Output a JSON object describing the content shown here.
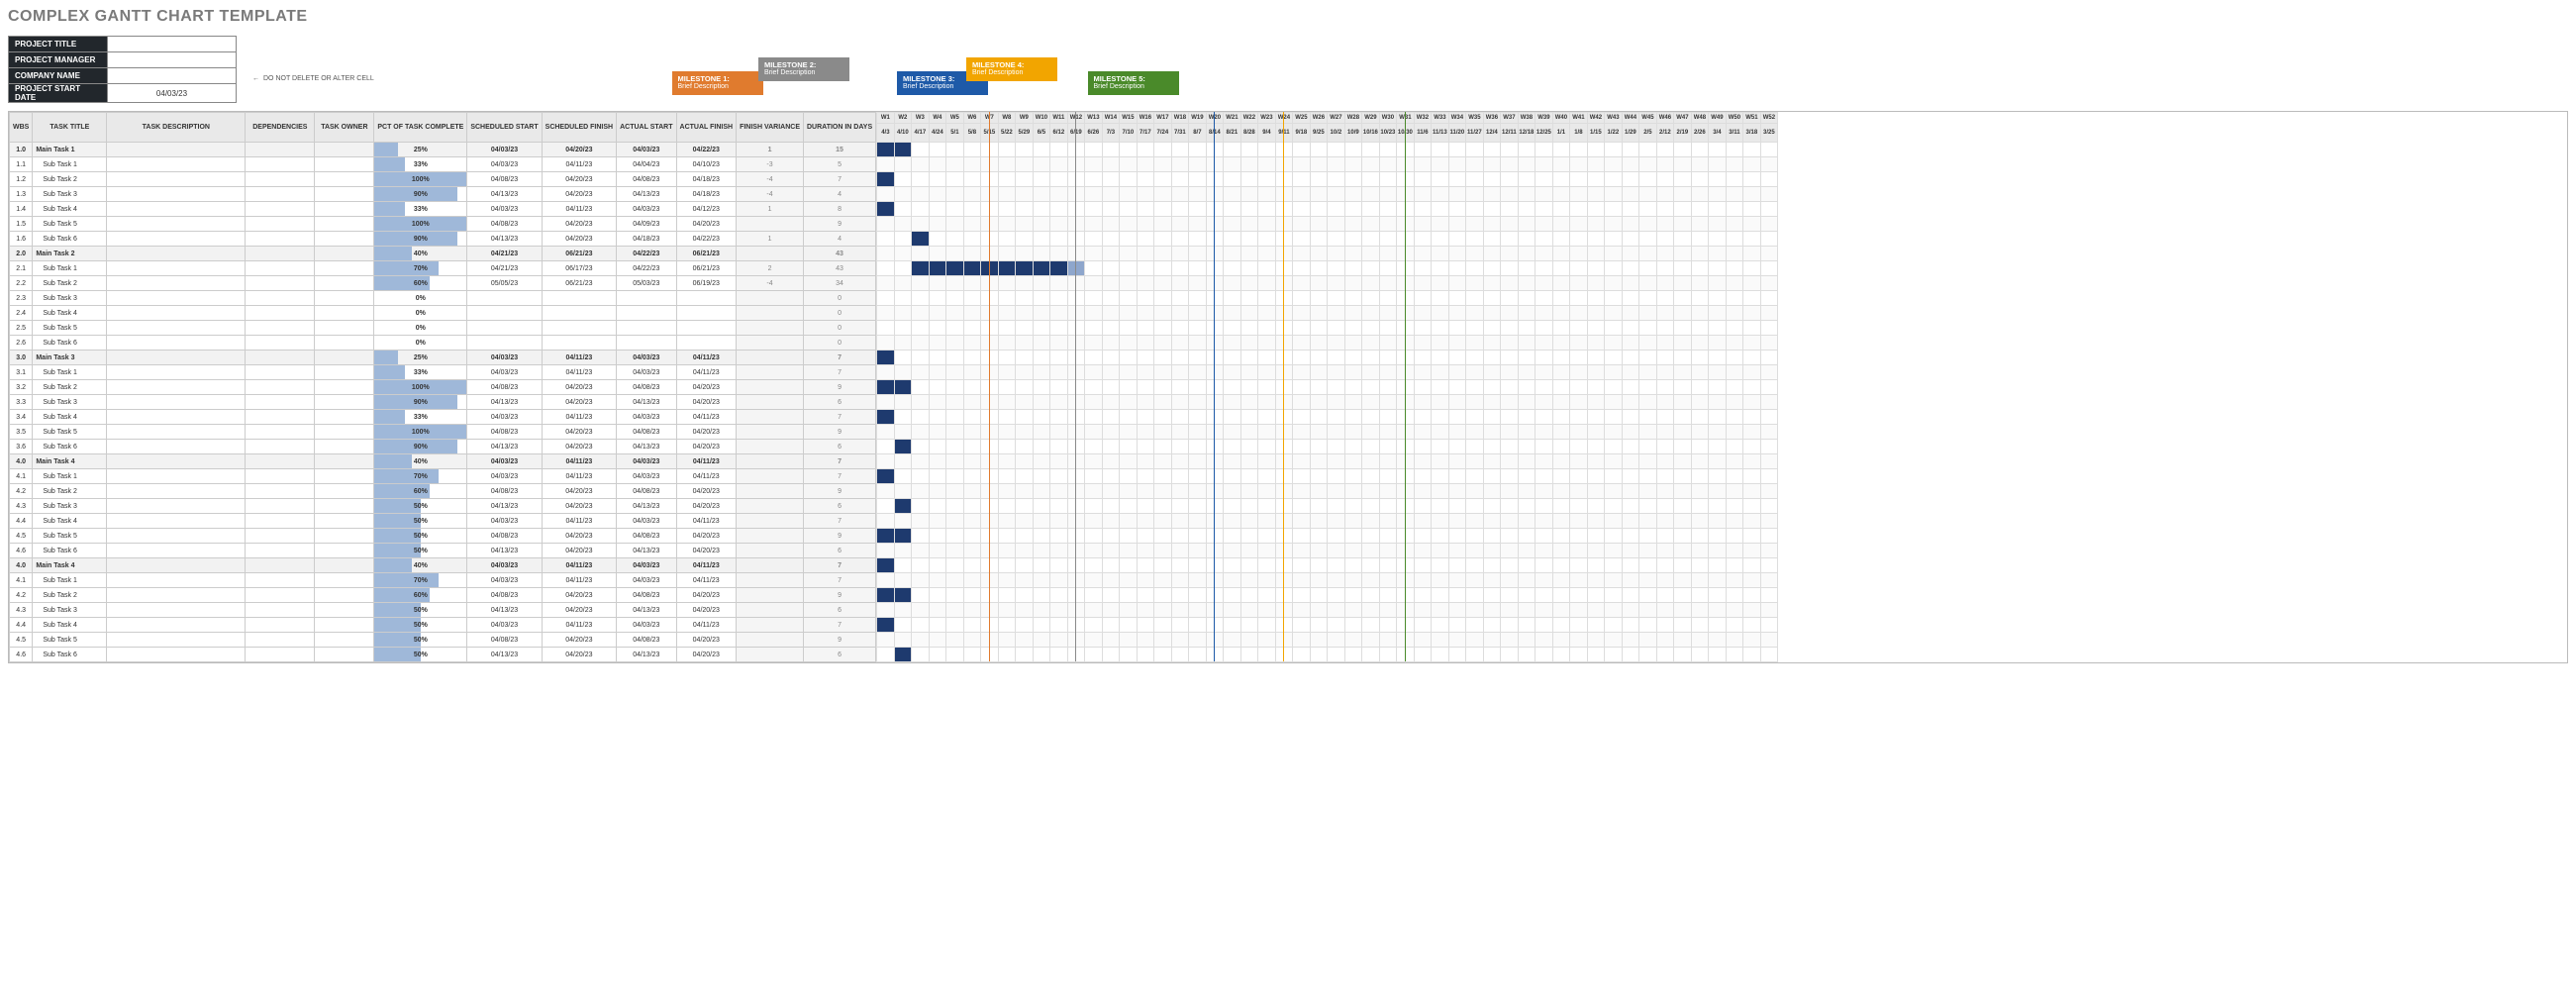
{
  "title": "COMPLEX GANTT CHART TEMPLATE",
  "meta": {
    "labels": [
      "PROJECT TITLE",
      "PROJECT MANAGER",
      "COMPANY NAME",
      "PROJECT START DATE"
    ],
    "values": [
      "",
      "",
      "",
      "04/03/23"
    ],
    "do_not_delete": "DO NOT DELETE OR ALTER CELL"
  },
  "columns": [
    "WBS",
    "TASK TITLE",
    "TASK DESCRIPTION",
    "DEPENDENCIES",
    "TASK OWNER",
    "PCT OF TASK COMPLETE",
    "SCHEDULED START",
    "SCHEDULED FINISH",
    "ACTUAL START",
    "ACTUAL FINISH",
    "FINISH VARIANCE",
    "DURATION IN DAYS"
  ],
  "milestones": [
    {
      "num": "1",
      "label": "MILESTONE 1:",
      "desc": "Brief Description",
      "color": "#e07b2e",
      "week": 7,
      "y": 14
    },
    {
      "num": "2",
      "label": "MILESTONE 2:",
      "desc": "Brief Description",
      "color": "#8a8a8a",
      "week": 12,
      "y": 0
    },
    {
      "num": "3",
      "label": "MILESTONE 3:",
      "desc": "Brief Description",
      "color": "#1e5aa8",
      "week": 20,
      "y": 14
    },
    {
      "num": "4",
      "label": "MILESTONE 4:",
      "desc": "Brief Description",
      "color": "#f2a500",
      "week": 24,
      "y": 0
    },
    {
      "num": "5",
      "label": "MILESTONE 5:",
      "desc": "Brief Description",
      "color": "#4a8a2a",
      "week": 31,
      "y": 14
    }
  ],
  "weeks": 52,
  "dates": [
    "4/3",
    "4/10",
    "4/17",
    "4/24",
    "5/1",
    "5/8",
    "5/15",
    "5/22",
    "5/29",
    "6/5",
    "6/12",
    "6/19",
    "6/26",
    "7/3",
    "7/10",
    "7/17",
    "7/24",
    "7/31",
    "8/7",
    "8/14",
    "8/21",
    "8/28",
    "9/4",
    "9/11",
    "9/18",
    "9/25",
    "10/2",
    "10/9",
    "10/16",
    "10/23",
    "10/30",
    "11/6",
    "11/13",
    "11/20",
    "11/27",
    "12/4",
    "12/11",
    "12/18",
    "12/25",
    "1/1",
    "1/8",
    "1/15",
    "1/22",
    "1/29",
    "2/5",
    "2/12",
    "2/19",
    "2/26",
    "3/4",
    "3/11",
    "3/18",
    "3/25"
  ],
  "rows": [
    {
      "wbs": "1.0",
      "title": "Main Task 1",
      "main": true,
      "pct": 25,
      "ss": "04/03/23",
      "sf": "04/20/23",
      "as": "04/03/23",
      "af": "04/22/23",
      "v": "1",
      "d": "15",
      "bar": [
        0,
        2
      ]
    },
    {
      "wbs": "1.1",
      "title": "Sub Task 1",
      "pct": 33,
      "ss": "04/03/23",
      "sf": "04/11/23",
      "as": "04/04/23",
      "af": "04/10/23",
      "v": "-3",
      "d": "5",
      "bar": [
        0,
        1
      ]
    },
    {
      "wbs": "1.2",
      "title": "Sub Task 2",
      "pct": 100,
      "ss": "04/08/23",
      "sf": "04/20/23",
      "as": "04/08/23",
      "af": "04/18/23",
      "v": "-4",
      "d": "7",
      "bar": [
        0,
        1
      ]
    },
    {
      "wbs": "1.3",
      "title": "Sub Task 3",
      "pct": 90,
      "ss": "04/13/23",
      "sf": "04/20/23",
      "as": "04/13/23",
      "af": "04/18/23",
      "v": "-4",
      "d": "4",
      "bar": [
        1,
        2
      ]
    },
    {
      "wbs": "1.4",
      "title": "Sub Task 4",
      "pct": 33,
      "ss": "04/03/23",
      "sf": "04/11/23",
      "as": "04/03/23",
      "af": "04/12/23",
      "v": "1",
      "d": "8",
      "bar": [
        0,
        1
      ]
    },
    {
      "wbs": "1.5",
      "title": "Sub Task 5",
      "pct": 100,
      "ss": "04/08/23",
      "sf": "04/20/23",
      "as": "04/09/23",
      "af": "04/20/23",
      "v": "",
      "d": "9",
      "bar": [
        0,
        2
      ]
    },
    {
      "wbs": "1.6",
      "title": "Sub Task 6",
      "pct": 90,
      "ss": "04/13/23",
      "sf": "04/20/23",
      "as": "04/18/23",
      "af": "04/22/23",
      "v": "1",
      "d": "4",
      "bar": [
        2,
        3
      ]
    },
    {
      "wbs": "2.0",
      "title": "Main Task 2",
      "main": true,
      "pct": 40,
      "ss": "04/21/23",
      "sf": "06/21/23",
      "as": "04/22/23",
      "af": "06/21/23",
      "v": "",
      "d": "43",
      "bar": [
        2,
        11
      ]
    },
    {
      "wbs": "2.1",
      "title": "Sub Task 1",
      "pct": 70,
      "ss": "04/21/23",
      "sf": "06/17/23",
      "as": "04/22/23",
      "af": "06/21/23",
      "v": "2",
      "d": "43",
      "bar": [
        2,
        11
      ],
      "tail": true
    },
    {
      "wbs": "2.2",
      "title": "Sub Task 2",
      "pct": 60,
      "ss": "05/05/23",
      "sf": "06/21/23",
      "as": "05/03/23",
      "af": "06/19/23",
      "v": "-4",
      "d": "34",
      "bar": [
        4,
        12
      ]
    },
    {
      "wbs": "2.3",
      "title": "Sub Task 3",
      "pct": 0,
      "ss": "",
      "sf": "",
      "as": "",
      "af": "",
      "v": "",
      "d": "0"
    },
    {
      "wbs": "2.4",
      "title": "Sub Task 4",
      "pct": 0,
      "ss": "",
      "sf": "",
      "as": "",
      "af": "",
      "v": "",
      "d": "0"
    },
    {
      "wbs": "2.5",
      "title": "Sub Task 5",
      "pct": 0,
      "ss": "",
      "sf": "",
      "as": "",
      "af": "",
      "v": "",
      "d": "0"
    },
    {
      "wbs": "2.6",
      "title": "Sub Task 6",
      "pct": 0,
      "ss": "",
      "sf": "",
      "as": "",
      "af": "",
      "v": "",
      "d": "0"
    },
    {
      "wbs": "3.0",
      "title": "Main Task 3",
      "main": true,
      "pct": 25,
      "ss": "04/03/23",
      "sf": "04/11/23",
      "as": "04/03/23",
      "af": "04/11/23",
      "v": "",
      "d": "7",
      "bar": [
        0,
        1
      ]
    },
    {
      "wbs": "3.1",
      "title": "Sub Task 1",
      "pct": 33,
      "ss": "04/03/23",
      "sf": "04/11/23",
      "as": "04/03/23",
      "af": "04/11/23",
      "v": "",
      "d": "7",
      "bar": [
        0,
        1
      ]
    },
    {
      "wbs": "3.2",
      "title": "Sub Task 2",
      "pct": 100,
      "ss": "04/08/23",
      "sf": "04/20/23",
      "as": "04/08/23",
      "af": "04/20/23",
      "v": "",
      "d": "9",
      "bar": [
        0,
        2
      ]
    },
    {
      "wbs": "3.3",
      "title": "Sub Task 3",
      "pct": 90,
      "ss": "04/13/23",
      "sf": "04/20/23",
      "as": "04/13/23",
      "af": "04/20/23",
      "v": "",
      "d": "6",
      "bar": [
        1,
        2
      ]
    },
    {
      "wbs": "3.4",
      "title": "Sub Task 4",
      "pct": 33,
      "ss": "04/03/23",
      "sf": "04/11/23",
      "as": "04/03/23",
      "af": "04/11/23",
      "v": "",
      "d": "7",
      "bar": [
        0,
        1
      ]
    },
    {
      "wbs": "3.5",
      "title": "Sub Task 5",
      "pct": 100,
      "ss": "04/08/23",
      "sf": "04/20/23",
      "as": "04/08/23",
      "af": "04/20/23",
      "v": "",
      "d": "9",
      "bar": [
        0,
        2
      ]
    },
    {
      "wbs": "3.6",
      "title": "Sub Task 6",
      "pct": 90,
      "ss": "04/13/23",
      "sf": "04/20/23",
      "as": "04/13/23",
      "af": "04/20/23",
      "v": "",
      "d": "6",
      "bar": [
        1,
        2
      ]
    },
    {
      "wbs": "4.0",
      "title": "Main Task 4",
      "main": true,
      "pct": 40,
      "ss": "04/03/23",
      "sf": "04/11/23",
      "as": "04/03/23",
      "af": "04/11/23",
      "v": "",
      "d": "7",
      "bar": [
        0,
        1
      ]
    },
    {
      "wbs": "4.1",
      "title": "Sub Task 1",
      "pct": 70,
      "ss": "04/03/23",
      "sf": "04/11/23",
      "as": "04/03/23",
      "af": "04/11/23",
      "v": "",
      "d": "7",
      "bar": [
        0,
        1
      ]
    },
    {
      "wbs": "4.2",
      "title": "Sub Task 2",
      "pct": 60,
      "ss": "04/08/23",
      "sf": "04/20/23",
      "as": "04/08/23",
      "af": "04/20/23",
      "v": "",
      "d": "9",
      "bar": [
        0,
        2
      ]
    },
    {
      "wbs": "4.3",
      "title": "Sub Task 3",
      "pct": 50,
      "ss": "04/13/23",
      "sf": "04/20/23",
      "as": "04/13/23",
      "af": "04/20/23",
      "v": "",
      "d": "6",
      "bar": [
        1,
        2
      ]
    },
    {
      "wbs": "4.4",
      "title": "Sub Task 4",
      "pct": 50,
      "ss": "04/03/23",
      "sf": "04/11/23",
      "as": "04/03/23",
      "af": "04/11/23",
      "v": "",
      "d": "7",
      "bar": [
        0,
        1
      ]
    },
    {
      "wbs": "4.5",
      "title": "Sub Task 5",
      "pct": 50,
      "ss": "04/08/23",
      "sf": "04/20/23",
      "as": "04/08/23",
      "af": "04/20/23",
      "v": "",
      "d": "9",
      "bar": [
        0,
        2
      ]
    },
    {
      "wbs": "4.6",
      "title": "Sub Task 6",
      "pct": 50,
      "ss": "04/13/23",
      "sf": "04/20/23",
      "as": "04/13/23",
      "af": "04/20/23",
      "v": "",
      "d": "6",
      "bar": [
        1,
        2
      ]
    },
    {
      "wbs": "4.0",
      "title": "Main Task 4",
      "main": true,
      "pct": 40,
      "ss": "04/03/23",
      "sf": "04/11/23",
      "as": "04/03/23",
      "af": "04/11/23",
      "v": "",
      "d": "7",
      "bar": [
        0,
        1
      ]
    },
    {
      "wbs": "4.1",
      "title": "Sub Task 1",
      "pct": 70,
      "ss": "04/03/23",
      "sf": "04/11/23",
      "as": "04/03/23",
      "af": "04/11/23",
      "v": "",
      "d": "7",
      "bar": [
        0,
        1
      ]
    },
    {
      "wbs": "4.2",
      "title": "Sub Task 2",
      "pct": 60,
      "ss": "04/08/23",
      "sf": "04/20/23",
      "as": "04/08/23",
      "af": "04/20/23",
      "v": "",
      "d": "9",
      "bar": [
        0,
        2
      ]
    },
    {
      "wbs": "4.3",
      "title": "Sub Task 3",
      "pct": 50,
      "ss": "04/13/23",
      "sf": "04/20/23",
      "as": "04/13/23",
      "af": "04/20/23",
      "v": "",
      "d": "6",
      "bar": [
        1,
        2
      ]
    },
    {
      "wbs": "4.4",
      "title": "Sub Task 4",
      "pct": 50,
      "ss": "04/03/23",
      "sf": "04/11/23",
      "as": "04/03/23",
      "af": "04/11/23",
      "v": "",
      "d": "7",
      "bar": [
        0,
        1
      ]
    },
    {
      "wbs": "4.5",
      "title": "Sub Task 5",
      "pct": 50,
      "ss": "04/08/23",
      "sf": "04/20/23",
      "as": "04/08/23",
      "af": "04/20/23",
      "v": "",
      "d": "9",
      "bar": [
        0,
        2
      ]
    },
    {
      "wbs": "4.6",
      "title": "Sub Task 6",
      "pct": 50,
      "ss": "04/13/23",
      "sf": "04/20/23",
      "as": "04/13/23",
      "af": "04/20/23",
      "v": "",
      "d": "6",
      "bar": [
        1,
        2
      ]
    }
  ]
}
